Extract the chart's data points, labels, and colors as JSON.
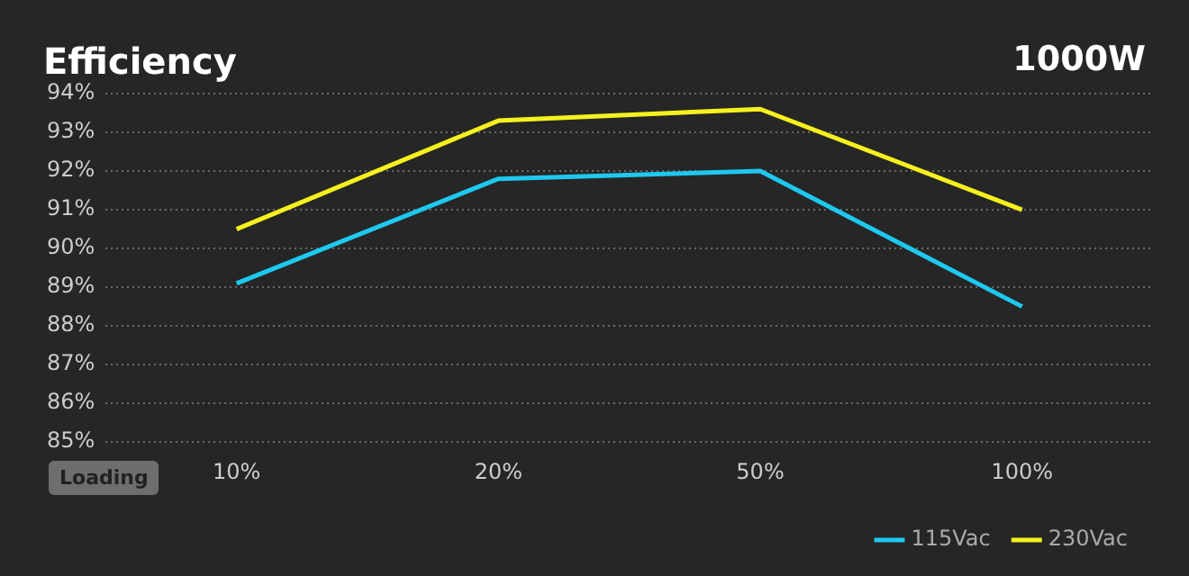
{
  "chart_data": {
    "type": "line",
    "title": "Efficiency",
    "subtitle": "1000W",
    "xlabel": "Loading",
    "categories": [
      "10%",
      "20%",
      "50%",
      "100%"
    ],
    "series": [
      {
        "name": "115Vac",
        "color": "#1ec8ef",
        "values": [
          89.1,
          91.8,
          92.0,
          88.5
        ]
      },
      {
        "name": "230Vac",
        "color": "#f5f01e",
        "values": [
          90.5,
          93.3,
          93.6,
          91.0
        ]
      }
    ],
    "ylim": [
      85,
      94
    ],
    "yticks": [
      {
        "value": 85,
        "label": "85%"
      },
      {
        "value": 86,
        "label": "86%"
      },
      {
        "value": 87,
        "label": "87%"
      },
      {
        "value": 88,
        "label": "88%"
      },
      {
        "value": 89,
        "label": "89%"
      },
      {
        "value": 90,
        "label": "90%"
      },
      {
        "value": 91,
        "label": "91%"
      },
      {
        "value": 92,
        "label": "92%"
      },
      {
        "value": 93,
        "label": "93%"
      },
      {
        "value": 94,
        "label": "94%"
      }
    ],
    "grid": "y",
    "legend": "bottom right",
    "marker": "none"
  }
}
